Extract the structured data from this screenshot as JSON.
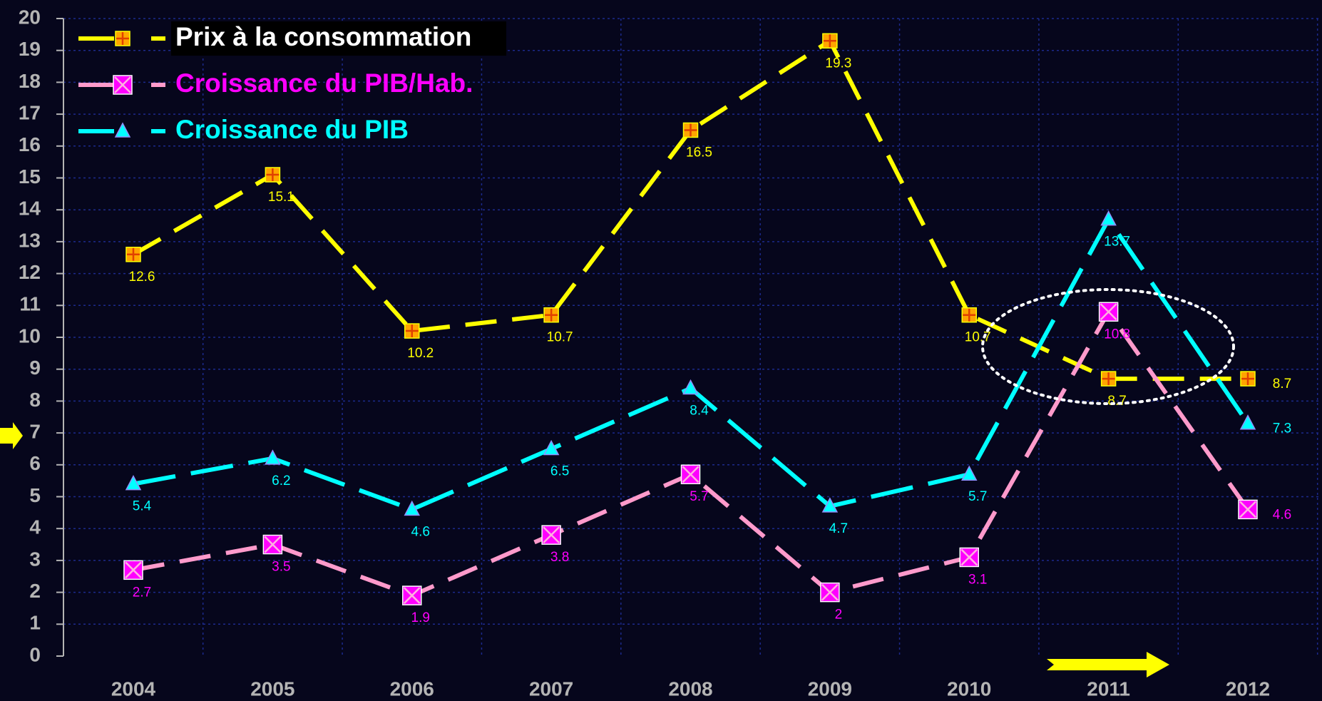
{
  "chart_data": {
    "type": "line",
    "categories": [
      "2004",
      "2005",
      "2006",
      "2007",
      "2008",
      "2009",
      "2010",
      "2011",
      "2012"
    ],
    "series": [
      {
        "name": "Prix à la consommation",
        "color": "#ffff00",
        "values": [
          12.6,
          15.1,
          10.2,
          10.7,
          16.5,
          19.3,
          10.7,
          8.7,
          8.7
        ]
      },
      {
        "name": "Croissance du PIB/Hab.",
        "color": "#ff9acb",
        "values": [
          2.7,
          3.5,
          1.9,
          3.8,
          5.7,
          2,
          3.1,
          10.8,
          4.6
        ]
      },
      {
        "name": "Croissance du PIB",
        "color": "#00ffff",
        "values": [
          5.4,
          6.2,
          4.6,
          6.5,
          8.4,
          4.7,
          5.7,
          13.7,
          7.3
        ]
      }
    ],
    "ylim": [
      0,
      20
    ],
    "yticks": [
      0,
      1,
      2,
      3,
      4,
      5,
      6,
      7,
      8,
      9,
      10,
      11,
      12,
      13,
      14,
      15,
      16,
      17,
      18,
      19,
      20
    ],
    "grid": true
  }
}
